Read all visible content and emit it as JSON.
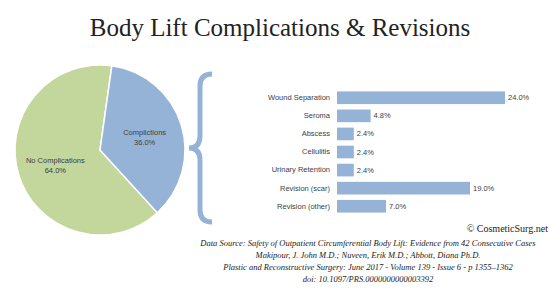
{
  "title": "Body Lift Complications & Revisions",
  "chart_data": [
    {
      "type": "pie",
      "categories": [
        "No Complications",
        "Complictions"
      ],
      "values": [
        64.0,
        36.0
      ],
      "value_labels": [
        "64.0%",
        "36.0%"
      ],
      "colors": [
        "#c3d69b",
        "#95b3d7"
      ],
      "data_labels": true
    },
    {
      "type": "bar",
      "orientation": "horizontal",
      "categories": [
        "Wound Separation",
        "Seroma",
        "Abscess",
        "Cellulitis",
        "Urinary Retention",
        "Revision (scar)",
        "Revision (other)"
      ],
      "values": [
        24.0,
        4.8,
        2.4,
        2.4,
        2.4,
        19.0,
        7.0
      ],
      "value_labels": [
        "24.0%",
        "4.8%",
        "2.4%",
        "2.4%",
        "2.4%",
        "19.0%",
        "7.0%"
      ],
      "color": "#95b3d7",
      "xlim": [
        0,
        24
      ],
      "data_labels": true,
      "tick_labels": "y"
    }
  ],
  "footer": [
    "© CosmeticSurg.net",
    "Data Source:  Safety of Outpatient Circumferential Body Lift: Evidence from 42 Consecutive Cases",
    "Makipour, J. John M.D.; Nuveen, Erik M.D.; Abbott, Diana Ph.D.",
    "Plastic and Reconstructive Surgery: June 2017 - Volume 139 - Issue 6 - p 1355–1362",
    "doi: 10.1097/PRS.0000000000003392"
  ]
}
